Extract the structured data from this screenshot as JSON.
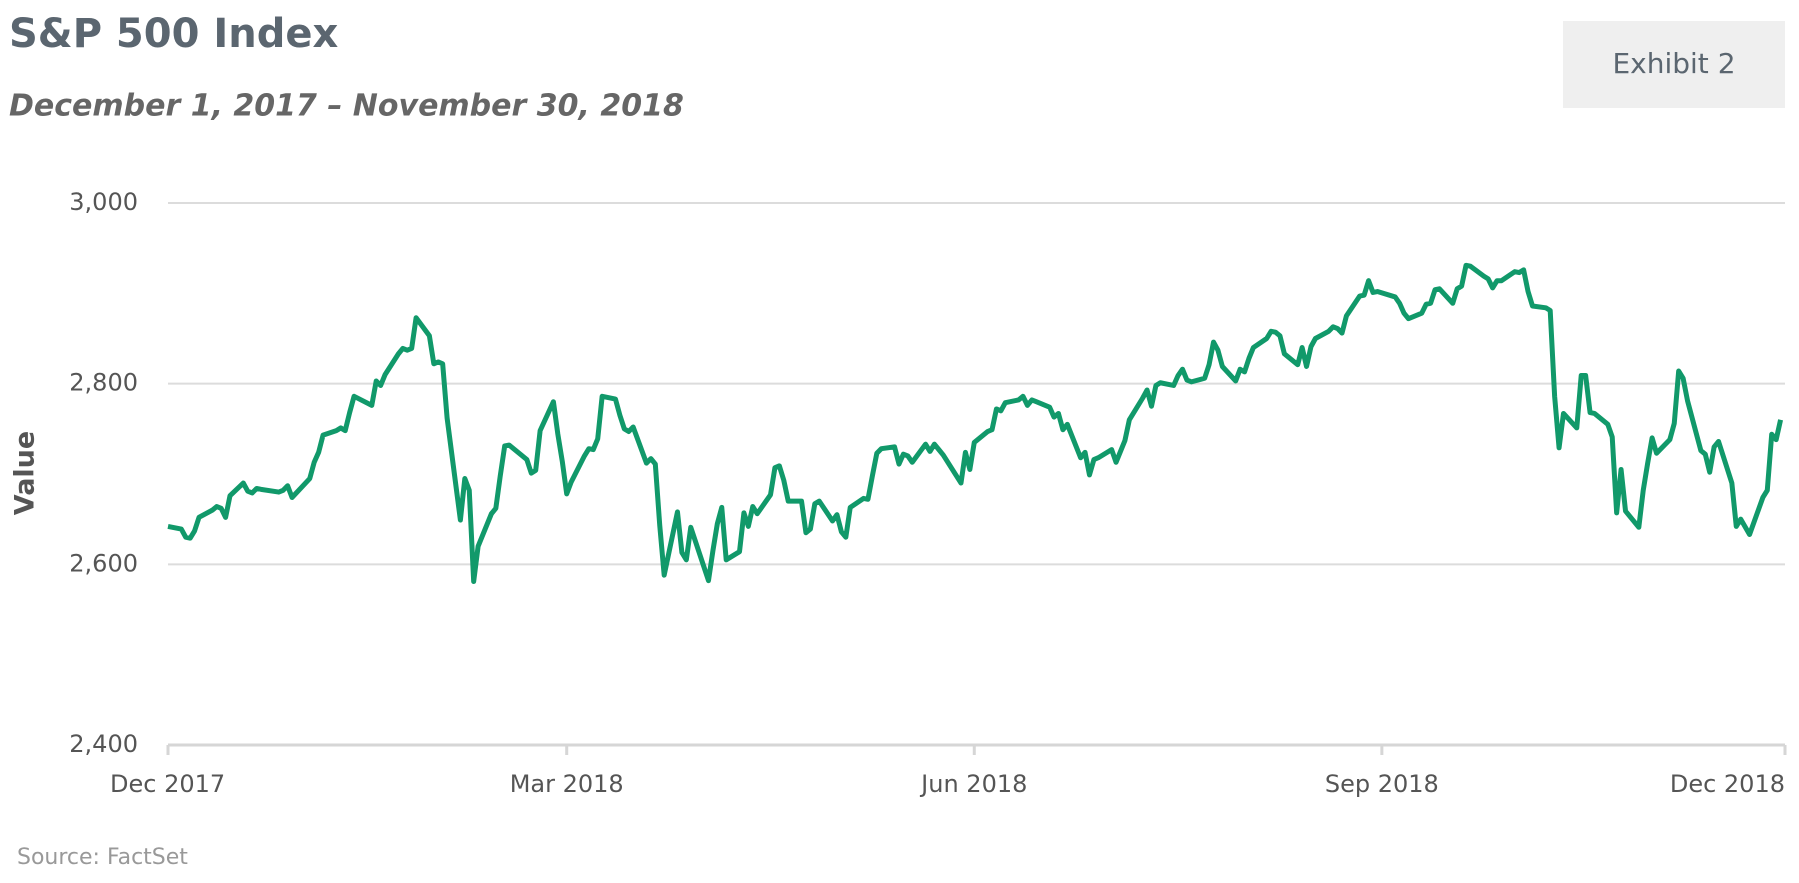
{
  "chart_data": {
    "type": "line",
    "title": "S&P 500 Index",
    "subtitle": "December 1, 2017 – November 30, 2018",
    "badge": "Exhibit 2",
    "source": "Source: FactSet",
    "y_label": "Value",
    "color": "#11996a",
    "grid": true,
    "xlim": [
      "2017-12-01",
      "2018-12-01"
    ],
    "xticks": [
      {
        "value": "2017-12-01",
        "label": "Dec 2017"
      },
      {
        "value": "2018-03-01",
        "label": "Mar 2018"
      },
      {
        "value": "2018-06-01",
        "label": "Jun 2018"
      },
      {
        "value": "2018-09-01",
        "label": "Sep 2018"
      },
      {
        "value": "2018-12-01",
        "label": "Dec 2018"
      }
    ],
    "ylim": [
      2400,
      3000
    ],
    "yticks": [
      {
        "value": 2400,
        "label": "2,400"
      },
      {
        "value": 2600,
        "label": "2,600"
      },
      {
        "value": 2800,
        "label": "2,800"
      },
      {
        "value": 3000,
        "label": "3,000"
      }
    ],
    "x": [
      "2017-12-01",
      "2017-12-04",
      "2017-12-05",
      "2017-12-06",
      "2017-12-07",
      "2017-12-08",
      "2017-12-11",
      "2017-12-12",
      "2017-12-13",
      "2017-12-14",
      "2017-12-15",
      "2017-12-18",
      "2017-12-19",
      "2017-12-20",
      "2017-12-21",
      "2017-12-22",
      "2017-12-26",
      "2017-12-27",
      "2017-12-28",
      "2017-12-29",
      "2018-01-02",
      "2018-01-03",
      "2018-01-04",
      "2018-01-05",
      "2018-01-08",
      "2018-01-09",
      "2018-01-10",
      "2018-01-11",
      "2018-01-12",
      "2018-01-16",
      "2018-01-17",
      "2018-01-18",
      "2018-01-19",
      "2018-01-22",
      "2018-01-23",
      "2018-01-24",
      "2018-01-25",
      "2018-01-26",
      "2018-01-29",
      "2018-01-30",
      "2018-01-31",
      "2018-02-01",
      "2018-02-02",
      "2018-02-05",
      "2018-02-06",
      "2018-02-07",
      "2018-02-08",
      "2018-02-09",
      "2018-02-12",
      "2018-02-13",
      "2018-02-14",
      "2018-02-15",
      "2018-02-16",
      "2018-02-20",
      "2018-02-21",
      "2018-02-22",
      "2018-02-23",
      "2018-02-26",
      "2018-02-27",
      "2018-02-28",
      "2018-03-01",
      "2018-03-02",
      "2018-03-05",
      "2018-03-06",
      "2018-03-07",
      "2018-03-08",
      "2018-03-09",
      "2018-03-12",
      "2018-03-13",
      "2018-03-14",
      "2018-03-15",
      "2018-03-16",
      "2018-03-19",
      "2018-03-20",
      "2018-03-21",
      "2018-03-22",
      "2018-03-23",
      "2018-03-26",
      "2018-03-27",
      "2018-03-28",
      "2018-03-29",
      "2018-04-02",
      "2018-04-03",
      "2018-04-04",
      "2018-04-05",
      "2018-04-06",
      "2018-04-09",
      "2018-04-10",
      "2018-04-11",
      "2018-04-12",
      "2018-04-13",
      "2018-04-16",
      "2018-04-17",
      "2018-04-18",
      "2018-04-19",
      "2018-04-20",
      "2018-04-23",
      "2018-04-24",
      "2018-04-25",
      "2018-04-26",
      "2018-04-27",
      "2018-04-30",
      "2018-05-01",
      "2018-05-02",
      "2018-05-03",
      "2018-05-04",
      "2018-05-07",
      "2018-05-08",
      "2018-05-09",
      "2018-05-10",
      "2018-05-11",
      "2018-05-14",
      "2018-05-15",
      "2018-05-16",
      "2018-05-17",
      "2018-05-18",
      "2018-05-21",
      "2018-05-22",
      "2018-05-23",
      "2018-05-24",
      "2018-05-25",
      "2018-05-29",
      "2018-05-30",
      "2018-05-31",
      "2018-06-01",
      "2018-06-04",
      "2018-06-05",
      "2018-06-06",
      "2018-06-07",
      "2018-06-08",
      "2018-06-11",
      "2018-06-12",
      "2018-06-13",
      "2018-06-14",
      "2018-06-15",
      "2018-06-18",
      "2018-06-19",
      "2018-06-20",
      "2018-06-21",
      "2018-06-22",
      "2018-06-25",
      "2018-06-26",
      "2018-06-27",
      "2018-06-28",
      "2018-06-29",
      "2018-07-02",
      "2018-07-03",
      "2018-07-05",
      "2018-07-06",
      "2018-07-09",
      "2018-07-10",
      "2018-07-11",
      "2018-07-12",
      "2018-07-13",
      "2018-07-16",
      "2018-07-17",
      "2018-07-18",
      "2018-07-19",
      "2018-07-20",
      "2018-07-23",
      "2018-07-24",
      "2018-07-25",
      "2018-07-26",
      "2018-07-27",
      "2018-07-30",
      "2018-07-31",
      "2018-08-01",
      "2018-08-02",
      "2018-08-03",
      "2018-08-06",
      "2018-08-07",
      "2018-08-08",
      "2018-08-09",
      "2018-08-10",
      "2018-08-13",
      "2018-08-14",
      "2018-08-15",
      "2018-08-16",
      "2018-08-17",
      "2018-08-20",
      "2018-08-21",
      "2018-08-22",
      "2018-08-23",
      "2018-08-24",
      "2018-08-27",
      "2018-08-28",
      "2018-08-29",
      "2018-08-30",
      "2018-08-31",
      "2018-09-04",
      "2018-09-05",
      "2018-09-06",
      "2018-09-07",
      "2018-09-10",
      "2018-09-11",
      "2018-09-12",
      "2018-09-13",
      "2018-09-14",
      "2018-09-17",
      "2018-09-18",
      "2018-09-19",
      "2018-09-20",
      "2018-09-21",
      "2018-09-24",
      "2018-09-25",
      "2018-09-26",
      "2018-09-27",
      "2018-09-28",
      "2018-10-01",
      "2018-10-02",
      "2018-10-03",
      "2018-10-04",
      "2018-10-05",
      "2018-10-08",
      "2018-10-09",
      "2018-10-10",
      "2018-10-11",
      "2018-10-12",
      "2018-10-15",
      "2018-10-16",
      "2018-10-17",
      "2018-10-18",
      "2018-10-19",
      "2018-10-22",
      "2018-10-23",
      "2018-10-24",
      "2018-10-25",
      "2018-10-26",
      "2018-10-29",
      "2018-10-30",
      "2018-10-31",
      "2018-11-01",
      "2018-11-02",
      "2018-11-05",
      "2018-11-06",
      "2018-11-07",
      "2018-11-08",
      "2018-11-09",
      "2018-11-12",
      "2018-11-13",
      "2018-11-14",
      "2018-11-15",
      "2018-11-16",
      "2018-11-19",
      "2018-11-20",
      "2018-11-21",
      "2018-11-23",
      "2018-11-26",
      "2018-11-27",
      "2018-11-28",
      "2018-11-29",
      "2018-11-30"
    ],
    "values": [
      2642,
      2639,
      2630,
      2629,
      2637,
      2652,
      2660,
      2664,
      2662,
      2652,
      2676,
      2690,
      2681,
      2679,
      2684,
      2683,
      2680,
      2682,
      2687,
      2674,
      2695,
      2713,
      2724,
      2743,
      2748,
      2751,
      2748,
      2768,
      2786,
      2776,
      2803,
      2798,
      2810,
      2833,
      2839,
      2837,
      2839,
      2873,
      2853,
      2822,
      2824,
      2822,
      2762,
      2649,
      2695,
      2682,
      2581,
      2620,
      2656,
      2662,
      2698,
      2731,
      2732,
      2716,
      2701,
      2704,
      2748,
      2780,
      2744,
      2714,
      2678,
      2691,
      2720,
      2728,
      2727,
      2739,
      2786,
      2783,
      2765,
      2750,
      2747,
      2752,
      2712,
      2717,
      2711,
      2643,
      2588,
      2658,
      2613,
      2605,
      2641,
      2582,
      2615,
      2645,
      2663,
      2605,
      2614,
      2657,
      2642,
      2664,
      2656,
      2677,
      2707,
      2709,
      2693,
      2670,
      2670,
      2635,
      2639,
      2667,
      2670,
      2648,
      2655,
      2636,
      2630,
      2663,
      2673,
      2672,
      2698,
      2723,
      2728,
      2730,
      2711,
      2722,
      2720,
      2713,
      2733,
      2725,
      2733,
      2727,
      2721,
      2690,
      2724,
      2705,
      2735,
      2747,
      2749,
      2772,
      2770,
      2779,
      2782,
      2786,
      2776,
      2782,
      2780,
      2774,
      2763,
      2767,
      2749,
      2755,
      2718,
      2724,
      2699,
      2716,
      2718,
      2727,
      2713,
      2737,
      2760,
      2784,
      2793,
      2775,
      2798,
      2801,
      2798,
      2809,
      2816,
      2804,
      2802,
      2806,
      2821,
      2846,
      2837,
      2819,
      2803,
      2816,
      2813,
      2828,
      2840,
      2850,
      2858,
      2857,
      2853,
      2833,
      2821,
      2840,
      2819,
      2841,
      2850,
      2858,
      2863,
      2861,
      2856,
      2875,
      2897,
      2898,
      2914,
      2901,
      2902,
      2896,
      2889,
      2878,
      2872,
      2878,
      2888,
      2889,
      2904,
      2905,
      2889,
      2905,
      2908,
      2931,
      2930,
      2919,
      2916,
      2906,
      2914,
      2914,
      2924,
      2923,
      2926,
      2902,
      2886,
      2884,
      2881,
      2786,
      2729,
      2767,
      2751,
      2809,
      2809,
      2768,
      2767,
      2755,
      2741,
      2657,
      2705,
      2659,
      2641,
      2682,
      2712,
      2740,
      2723,
      2738,
      2756,
      2814,
      2806,
      2781,
      2726,
      2722,
      2702,
      2730,
      2736,
      2690,
      2642,
      2650,
      2633,
      2674,
      2682,
      2744,
      2738,
      2760
    ]
  }
}
